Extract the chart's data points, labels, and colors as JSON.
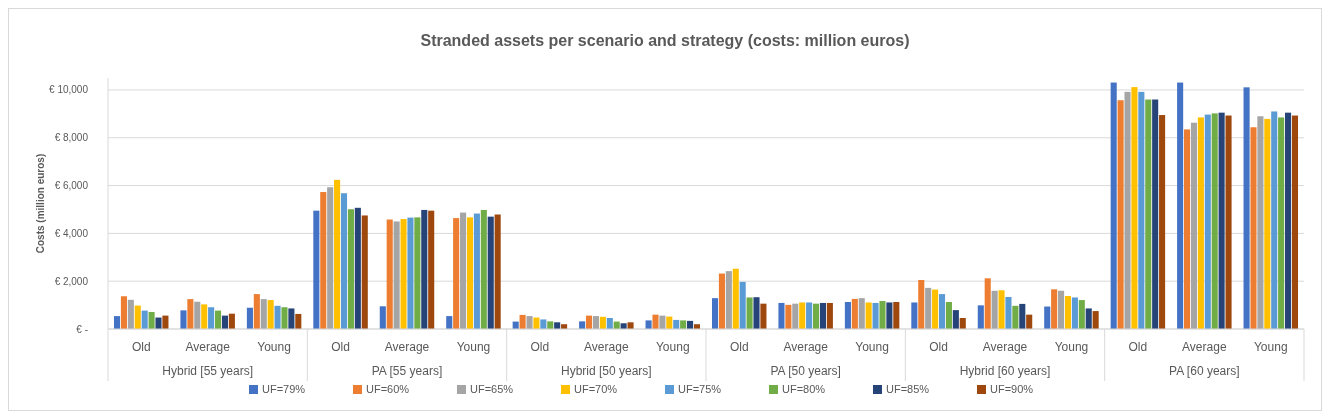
{
  "chart_data": {
    "type": "bar",
    "title": "Stranded assets per scenario and strategy (costs: million euros)",
    "ylabel": "Costs (million euros)",
    "categories": [
      "Old",
      "Average",
      "Young",
      "Old",
      "Average",
      "Young",
      "Old",
      "Average",
      "Young",
      "Old",
      "Average",
      "Young",
      "Old",
      "Average",
      "Young",
      "Old",
      "Average",
      "Young"
    ],
    "annotations": [
      "Hybrid [55 years]",
      "PA [55 years]",
      "Hybrid [50 years]",
      "PA [50 years]",
      "Hybrid [60 years]",
      "PA [60 years]"
    ],
    "series": [
      {
        "name": "UF=79%",
        "color": "#4472c4",
        "values": [
          540,
          780,
          890,
          4950,
          950,
          540,
          310,
          320,
          360,
          1290,
          1090,
          1130,
          1110,
          990,
          940,
          10310,
          10310,
          10110
        ]
      },
      {
        "name": "UF=60%",
        "color": "#ed7d31",
        "values": [
          1370,
          1250,
          1460,
          5730,
          4580,
          4640,
          590,
          560,
          600,
          2320,
          1010,
          1260,
          2050,
          2120,
          1660,
          9570,
          8350,
          8440
        ]
      },
      {
        "name": "UF=65%",
        "color": "#a5a5a5",
        "values": [
          1220,
          1140,
          1250,
          5930,
          4500,
          4870,
          540,
          540,
          560,
          2420,
          1060,
          1290,
          1720,
          1600,
          1600,
          9920,
          8630,
          8900
        ]
      },
      {
        "name": "UF=70%",
        "color": "#ffc000",
        "values": [
          980,
          1030,
          1210,
          6240,
          4600,
          4670,
          480,
          510,
          520,
          2520,
          1110,
          1110,
          1650,
          1620,
          1380,
          10120,
          8850,
          8790
        ]
      },
      {
        "name": "UF=75%",
        "color": "#5b9bd5",
        "values": [
          770,
          910,
          970,
          5680,
          4660,
          4830,
          400,
          460,
          380,
          1970,
          1110,
          1090,
          1460,
          1340,
          1320,
          9920,
          8970,
          9100
        ]
      },
      {
        "name": "UF=80%",
        "color": "#70ad47",
        "values": [
          710,
          770,
          910,
          5010,
          4670,
          4980,
          320,
          310,
          360,
          1320,
          1060,
          1170,
          1130,
          970,
          1210,
          9600,
          9020,
          8850
        ]
      },
      {
        "name": "UF=85%",
        "color": "#264478",
        "values": [
          480,
          560,
          860,
          5070,
          4980,
          4700,
          280,
          240,
          340,
          1330,
          1090,
          1110,
          790,
          1050,
          860,
          9600,
          9050,
          9050
        ]
      },
      {
        "name": "UF=90%",
        "color": "#9e480e",
        "values": [
          560,
          640,
          630,
          4750,
          4950,
          4790,
          200,
          280,
          200,
          1060,
          1090,
          1130,
          460,
          600,
          750,
          8950,
          8930,
          8930
        ]
      }
    ],
    "ylim": [
      0,
      10500
    ],
    "yticks": [
      {
        "value": 0,
        "label": "€ -"
      },
      {
        "value": 2000,
        "label": "€ 2,000"
      },
      {
        "value": 4000,
        "label": "€ 4,000"
      },
      {
        "value": 6000,
        "label": "€ 6,000"
      },
      {
        "value": 8000,
        "label": "€ 8,000"
      },
      {
        "value": 10000,
        "label": "€ 10,000"
      }
    ],
    "grid": "y",
    "legend": "bottom"
  }
}
